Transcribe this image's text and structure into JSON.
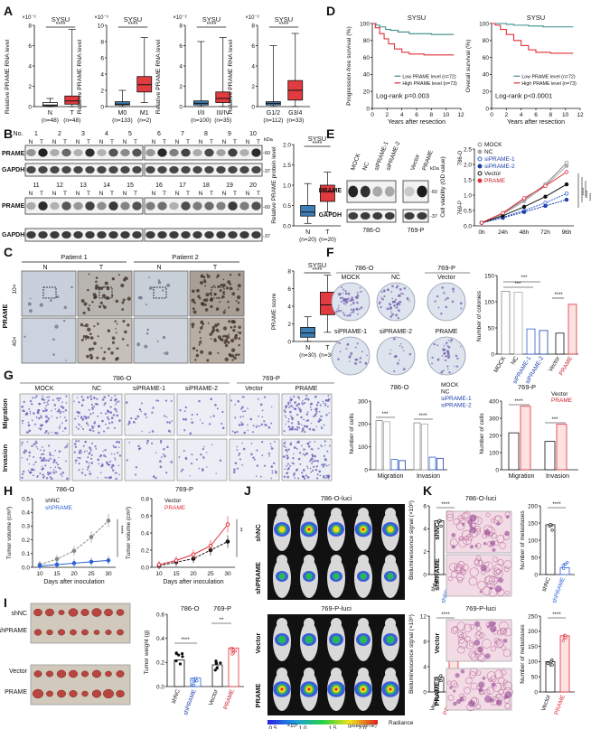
{
  "panel_letters": [
    "A",
    "B",
    "C",
    "D",
    "E",
    "F",
    "G",
    "H",
    "I",
    "J",
    "K"
  ],
  "panelA": {
    "plots": [
      {
        "title": "SYSU",
        "sig": "****",
        "ylabel": "Relative PRAME RNA level",
        "exp": "×10⁻²",
        "ticks": [
          "0",
          "2",
          "4",
          "6",
          "8"
        ],
        "groups": [
          {
            "label": "N",
            "n": "(n=48)",
            "color": "#2f6b9a",
            "fill": "#ffffff"
          },
          {
            "label": "T",
            "n": "(n=48)",
            "color": "#c8202a",
            "fill": "#e23b3f"
          }
        ]
      },
      {
        "title": "SYSU",
        "sig": "****",
        "ylabel": "Relative PRAME RNA level",
        "exp": "×10⁻³",
        "ticks": [
          "0",
          "2",
          "4",
          "6",
          "8",
          "10"
        ],
        "groups": [
          {
            "label": "M0",
            "n": "(n=133)",
            "color": "#2f6b9a",
            "fill": "#3b7fb6"
          },
          {
            "label": "M1",
            "n": "(n=2)",
            "color": "#c8202a",
            "fill": "#e23b3f"
          }
        ]
      },
      {
        "title": "SYSU",
        "sig": "****",
        "ylabel": "Relative PRAME RNA level",
        "exp": "×10⁻²",
        "ticks": [
          "0",
          "2",
          "4",
          "6",
          "8"
        ],
        "groups": [
          {
            "label": "I/II",
            "n": "(n=100)",
            "color": "#2f6b9a",
            "fill": "#3b7fb6"
          },
          {
            "label": "III/IV",
            "n": "(n=35)",
            "color": "#c8202a",
            "fill": "#e23b3f"
          }
        ]
      },
      {
        "title": "SYSU",
        "sig": "****",
        "ylabel": "Relative PRAME RNA level",
        "exp": "×10⁻²",
        "ticks": [
          "0",
          "2",
          "4",
          "6",
          "8"
        ],
        "groups": [
          {
            "label": "G1/2",
            "n": "(n=112)",
            "color": "#2f6b9a",
            "fill": "#3b7fb6"
          },
          {
            "label": "G3/4",
            "n": "(n=33)",
            "color": "#c8202a",
            "fill": "#e23b3f"
          }
        ]
      }
    ]
  },
  "panelD": {
    "plots": [
      {
        "title": "SYSU",
        "ylabel": "Progression-free survival (%)",
        "xlabel": "Years after resection",
        "pval": "Log-rank p=0.003",
        "legend": [
          "Low PRAME level (n=72)",
          "High PRAME level (n=73)"
        ],
        "xticks": [
          "0",
          "2",
          "4",
          "6",
          "8",
          "10",
          "12"
        ],
        "yticks": [
          "0",
          "20",
          "40",
          "60",
          "80",
          "100"
        ]
      },
      {
        "title": "SYSU",
        "ylabel": "Overall survival (%)",
        "xlabel": "Years after resection",
        "pval": "Log-rank p<0.0001",
        "legend": [
          "Low PRAME level (n=72)",
          "High PRAME level (n=73)"
        ],
        "xticks": [
          "0",
          "2",
          "4",
          "6",
          "8",
          "10",
          "12"
        ],
        "yticks": [
          "0",
          "20",
          "40",
          "60",
          "80",
          "100"
        ]
      }
    ],
    "low_color": "#3a8c8c",
    "high_color": "#e0303a"
  },
  "panelB": {
    "nums_top": [
      "No.",
      "1",
      "2",
      "3",
      "4",
      "5",
      "6",
      "7",
      "8",
      "9",
      "10"
    ],
    "nums_bottom": [
      "11",
      "12",
      "13",
      "14",
      "15",
      "16",
      "17",
      "18",
      "19",
      "20"
    ],
    "nt": [
      "N",
      "T"
    ],
    "rows": [
      "PRAME",
      "GAPDH"
    ],
    "kda": "kDa",
    "mw": [
      "-60",
      "-37"
    ],
    "box": {
      "title": "SYSU",
      "sig": "****",
      "ylabel": "Relative PRAME protein level",
      "ticks": [
        "0.0",
        "0.5",
        "1.0",
        "1.5",
        "2.0"
      ],
      "groups": [
        {
          "label": "N",
          "n": "(n=20)"
        },
        {
          "label": "T",
          "n": "(n=20)"
        }
      ]
    }
  },
  "panelC": {
    "patients": [
      "Patient 1",
      "Patient 2"
    ],
    "nt": [
      "N",
      "T",
      "N",
      "T"
    ],
    "row_label": "PRAME",
    "mag": [
      "10×",
      "40×"
    ],
    "box": {
      "title": "SYSU",
      "sig": "****",
      "ylabel": "PRAME score",
      "ticks": [
        "0",
        "2",
        "4",
        "6",
        "8"
      ],
      "groups": [
        {
          "label": "N",
          "n": "(n=30)"
        },
        {
          "label": "T",
          "n": "(n=30)"
        }
      ]
    }
  },
  "panelE": {
    "lanes": [
      "MOCK",
      "NC",
      "siPRAME-1",
      "siPRAME-2",
      "Vector",
      "PRAME"
    ],
    "rows": [
      "PRAME",
      "GAPDH"
    ],
    "cells": [
      "786-O",
      "769-P"
    ],
    "kda": "kDa",
    "mw": [
      "-60",
      "-37"
    ],
    "legend": [
      "MOCK",
      "NC",
      "siPRAME-1",
      "siPRAME-2",
      "Vector",
      "PRAME"
    ],
    "ylabel": "Cell viability (OD value)",
    "sub1": "786-O",
    "sub2": "769-P",
    "xticks": [
      "0h",
      "24h",
      "48h",
      "72h",
      "96h"
    ],
    "yticks": [
      "0.0",
      "0.5",
      "1.0",
      "1.5",
      "2.0",
      "2.5"
    ],
    "sig": [
      "****",
      "****",
      "****"
    ]
  },
  "chart_data": [
    {
      "type": "line",
      "title": "",
      "xlabel": "",
      "ylabel": "Cell viability (OD value)",
      "categories": [
        "0h",
        "24h",
        "48h",
        "72h",
        "96h"
      ],
      "ylim": [
        0,
        2.5
      ],
      "series": [
        {
          "name": "MOCK",
          "values": [
            0.1,
            0.4,
            0.85,
            1.35,
            2.05
          ]
        },
        {
          "name": "NC",
          "values": [
            0.1,
            0.38,
            0.8,
            1.3,
            1.95
          ]
        },
        {
          "name": "siPRAME-1",
          "values": [
            0.1,
            0.28,
            0.5,
            0.75,
            1.05
          ]
        },
        {
          "name": "siPRAME-2",
          "values": [
            0.1,
            0.26,
            0.45,
            0.65,
            0.85
          ]
        },
        {
          "name": "Vector",
          "values": [
            0.1,
            0.33,
            0.62,
            0.95,
            1.35
          ]
        },
        {
          "name": "PRAME",
          "values": [
            0.1,
            0.42,
            0.9,
            1.3,
            1.75
          ]
        }
      ]
    },
    {
      "type": "bar",
      "title": "",
      "ylabel": "Number of colonies",
      "categories": [
        "MOCK",
        "NC",
        "siPRAME-1",
        "siPRAME-2",
        "Vector",
        "PRAME"
      ],
      "ylim": [
        0,
        150
      ],
      "values": [
        120,
        118,
        48,
        45,
        40,
        95
      ]
    },
    {
      "type": "bar",
      "title": "786-O",
      "ylabel": "Number of cells",
      "categories": [
        "Migration",
        "Invasion"
      ],
      "ylim": [
        0,
        300
      ],
      "series": [
        {
          "name": "MOCK",
          "values": [
            215,
            205
          ]
        },
        {
          "name": "NC",
          "values": [
            210,
            200
          ]
        },
        {
          "name": "siPRAME-1",
          "values": [
            45,
            55
          ]
        },
        {
          "name": "siPRAME-2",
          "values": [
            40,
            50
          ]
        }
      ]
    },
    {
      "type": "bar",
      "title": "769-P",
      "ylabel": "Number of cells",
      "categories": [
        "Migration",
        "Invasion"
      ],
      "ylim": [
        0,
        400
      ],
      "series": [
        {
          "name": "Vector",
          "values": [
            215,
            165
          ]
        },
        {
          "name": "PRAME",
          "values": [
            370,
            265
          ]
        }
      ]
    },
    {
      "type": "line",
      "title": "786-O",
      "xlabel": "Days after inoculation",
      "ylabel": "Tumor volume (cm³)",
      "categories": [
        "10",
        "15",
        "20",
        "25",
        "30"
      ],
      "ylim": [
        0,
        0.5
      ],
      "series": [
        {
          "name": "shNC",
          "values": [
            0.02,
            0.06,
            0.12,
            0.22,
            0.34
          ]
        },
        {
          "name": "shPRAME",
          "values": [
            0.01,
            0.02,
            0.03,
            0.04,
            0.05
          ]
        }
      ]
    },
    {
      "type": "line",
      "title": "769-P",
      "xlabel": "Days after inoculation",
      "ylabel": "Tumor volume (cm³)",
      "categories": [
        "10",
        "15",
        "20",
        "25",
        "30"
      ],
      "ylim": [
        0,
        0.8
      ],
      "series": [
        {
          "name": "Vector",
          "values": [
            0.02,
            0.06,
            0.1,
            0.2,
            0.3
          ]
        },
        {
          "name": "PRAME",
          "values": [
            0.03,
            0.08,
            0.15,
            0.25,
            0.5
          ]
        }
      ]
    },
    {
      "type": "bar",
      "title": "",
      "ylabel": "Tumor weight (g)",
      "categories": [
        "shNC",
        "shPRAME",
        "Vector",
        "PRAME"
      ],
      "ylim": [
        0,
        0.6
      ],
      "values": [
        0.22,
        0.07,
        0.18,
        0.32
      ]
    },
    {
      "type": "bar",
      "title": "",
      "ylabel": "Bioluminescence signal (×10⁸)",
      "categories": [
        "shNC",
        "shPRAME"
      ],
      "ylim": [
        0,
        6
      ],
      "values": [
        4.7,
        0.5
      ]
    },
    {
      "type": "bar",
      "title": "",
      "ylabel": "Bioluminescence signal (×10⁸)",
      "categories": [
        "Vector",
        "PRAME"
      ],
      "ylim": [
        0,
        12
      ],
      "values": [
        2.3,
        8.8
      ]
    },
    {
      "type": "bar",
      "title": "",
      "ylabel": "Number of metastases",
      "categories": [
        "shNC",
        "shPRAME"
      ],
      "ylim": [
        0,
        200
      ],
      "values": [
        145,
        20
      ]
    },
    {
      "type": "bar",
      "title": "",
      "ylabel": "Number of metastases",
      "categories": [
        "Vector",
        "PRAME"
      ],
      "ylim": [
        0,
        250
      ],
      "values": [
        100,
        185
      ]
    }
  ],
  "panelF": {
    "cells": [
      "786-O",
      "769-P"
    ],
    "dishes": [
      "MOCK",
      "NC",
      "Vector",
      "siPRAME-1",
      "siPRAME-2",
      "PRAME"
    ],
    "ylabel": "Number of colonies",
    "yticks": [
      "0",
      "50",
      "100",
      "150"
    ],
    "sig": [
      "***",
      "***",
      "****"
    ],
    "xlabels": [
      "MOCK",
      "NC",
      "siPRAME-1",
      "siPRAME-2",
      "Vector",
      "PRAME"
    ]
  },
  "panelG": {
    "cells": [
      "786-O",
      "769-P"
    ],
    "cols": [
      "MOCK",
      "NC",
      "siPRAME-1",
      "siPRAME-2",
      "Vector",
      "PRAME"
    ],
    "rows": [
      "Migration",
      "Invasion"
    ],
    "c1": {
      "title": "786-O",
      "legend": [
        "MOCK",
        "NC",
        "siPRAME-1",
        "siPRAME-2"
      ],
      "ylabel": "Number of cells",
      "yticks": [
        "0",
        "100",
        "200",
        "300"
      ],
      "x": [
        "Migration",
        "Invasion"
      ],
      "sig": [
        "***",
        "****"
      ]
    },
    "c2": {
      "title": "769-P",
      "legend": [
        "Vector",
        "PRAME"
      ],
      "ylabel": "Number of cells",
      "yticks": [
        "0",
        "100",
        "200",
        "300",
        "400"
      ],
      "x": [
        "Migration",
        "Invasion"
      ],
      "sig": [
        "****",
        "***"
      ]
    }
  },
  "panelH": {
    "p1": {
      "title": "786-O",
      "legend": [
        "shNC",
        "shPRAME"
      ],
      "ylabel": "Tumor volume (cm³)",
      "xlabel": "Days after inoculation",
      "xticks": [
        "10",
        "15",
        "20",
        "25",
        "30"
      ],
      "yticks": [
        "0.0",
        "0.1",
        "0.2",
        "0.3",
        "0.4",
        "0.5"
      ],
      "sig": "****"
    },
    "p2": {
      "title": "769-P",
      "legend": [
        "Vector",
        "PRAME"
      ],
      "ylabel": "Tumor volume (cm³)",
      "xlabel": "Days after inoculation",
      "xticks": [
        "10",
        "15",
        "20",
        "25",
        "30"
      ],
      "yticks": [
        "0.0",
        "0.2",
        "0.4",
        "0.6",
        "0.8"
      ],
      "sig": "**"
    }
  },
  "panelI": {
    "rows": [
      "shNC",
      "shPRAME",
      "Vector",
      "PRAME"
    ],
    "sub1": "786-O",
    "sub2": "769-P",
    "ylabel": "Tumor weight (g)",
    "yticks": [
      "0.0",
      "0.2",
      "0.4",
      "0.6"
    ],
    "sig": [
      "****",
      "**"
    ],
    "x": [
      "shNC",
      "shPRAME",
      "Vector",
      "PRAME"
    ]
  },
  "panelJ": {
    "title1": "786-O-luci",
    "title2": "769-P-luci",
    "rows": [
      "shNC",
      "shPRAME",
      "Vector",
      "PRAME"
    ],
    "c1": {
      "ylabel": "Bioluminescence signal (×10⁸)",
      "yticks": [
        "0",
        "2",
        "4",
        "6"
      ],
      "x": [
        "shNC",
        "shPRAME"
      ],
      "sig": "****"
    },
    "c2": {
      "ylabel": "Bioluminescence signal (×10⁸)",
      "yticks": [
        "0",
        "4",
        "8",
        "12"
      ],
      "x": [
        "Vector",
        "PRAME"
      ],
      "sig": "****"
    },
    "scale": {
      "ticks": [
        "0.5",
        "1.0",
        "1.5",
        "2.0"
      ],
      "unit": "×10⁷",
      "unit2": "(p/sec/cm²/sr)",
      "label": "Radiance"
    }
  },
  "panelK": {
    "title1": "786-O-luci",
    "title2": "769-P-luci",
    "rows": [
      "shNC",
      "shPRAME",
      "Vector",
      "PRAME"
    ],
    "c1": {
      "ylabel": "Number of metastases",
      "yticks": [
        "0",
        "50",
        "100",
        "150",
        "200"
      ],
      "x": [
        "shNC",
        "shPRAME"
      ],
      "sig": "****"
    },
    "c2": {
      "ylabel": "Number of metastases",
      "yticks": [
        "0",
        "50",
        "100",
        "150",
        "200",
        "250"
      ],
      "x": [
        "Vector",
        "PRAME"
      ],
      "sig": "****"
    }
  }
}
